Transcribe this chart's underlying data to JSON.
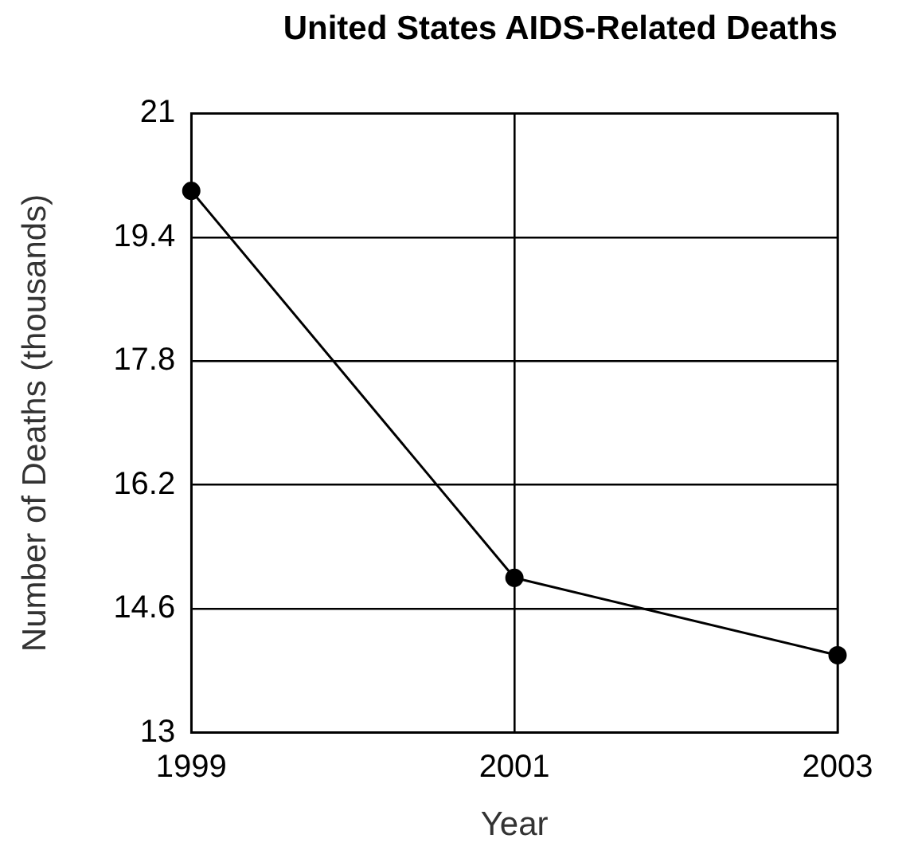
{
  "chart_data": {
    "type": "line",
    "title": "United States AIDS-Related Deaths",
    "xlabel": "Year",
    "ylabel": "Number of Deaths (thousands)",
    "x": [
      1999,
      2001,
      2003
    ],
    "series": [
      {
        "color": "#000000",
        "values": [
          20,
          15,
          14
        ]
      }
    ],
    "xlim": [
      1999,
      2003
    ],
    "xticks": [
      1999,
      2001,
      2003
    ],
    "ylim": [
      13,
      21
    ],
    "yticks": [
      13,
      14.6,
      16.2,
      17.8,
      19.4,
      21
    ],
    "grid": true,
    "marker": "circle",
    "line_style": "solid",
    "legend": false
  }
}
